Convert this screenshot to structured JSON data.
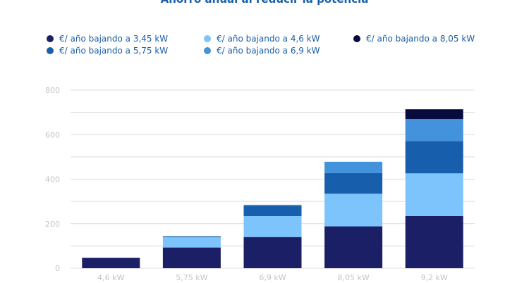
{
  "chart_data": {
    "type": "bar",
    "stacked": true,
    "title": "Ahorro anual al reducir la potencia",
    "categories": [
      "4,6 kW",
      "5,75 kW",
      "6,9 kW",
      "8,05 kW",
      "9,2 kW"
    ],
    "series": [
      {
        "name": "€/ año bajando a 3,45 kW",
        "color": "#1b1f66",
        "values": [
          47,
          93,
          140,
          188,
          234
        ]
      },
      {
        "name": "€/ año bajando a 4,6 kW",
        "color": "#7cc4fb",
        "values": [
          0,
          47,
          94,
          147,
          192
        ]
      },
      {
        "name": "€/ año bajando a 5,75 kW",
        "color": "#175fac",
        "values": [
          0,
          4,
          47,
          92,
          145
        ]
      },
      {
        "name": "€/ año bajando a 6,9 kW",
        "color": "#4392dc",
        "values": [
          0,
          0,
          4,
          51,
          99
        ]
      },
      {
        "name": "€/ año bajando a 8,05 kW",
        "color": "#070b3e",
        "values": [
          0,
          0,
          0,
          0,
          44
        ]
      }
    ],
    "legend_order": [
      0,
      1,
      4,
      2,
      3
    ],
    "ylim": [
      0,
      800
    ],
    "yticks": [
      0,
      200,
      400,
      600,
      800
    ],
    "grid": true,
    "legend_position": "top"
  }
}
